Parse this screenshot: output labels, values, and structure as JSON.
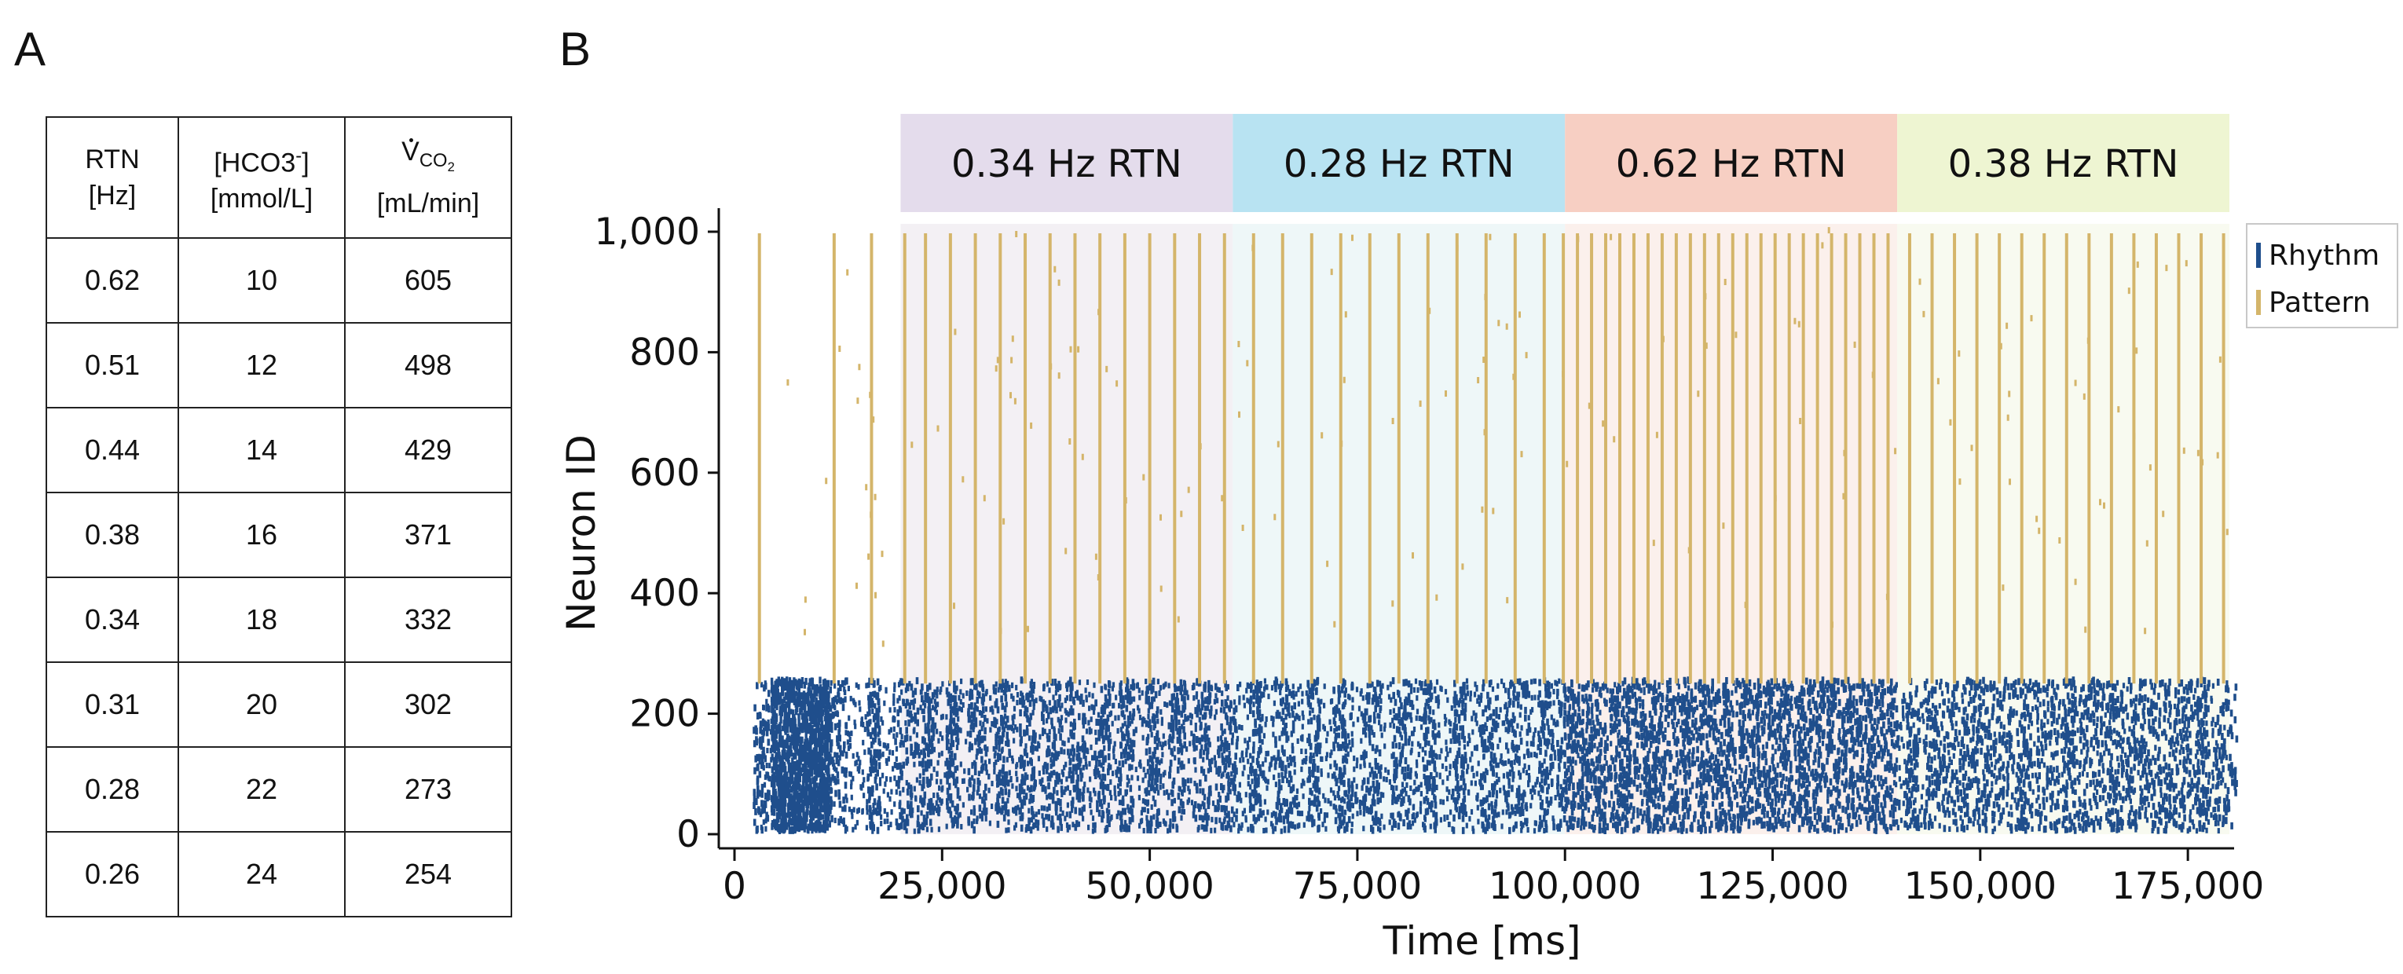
{
  "panel_labels": {
    "a": "A",
    "b": "B"
  },
  "table": {
    "headers": [
      {
        "line1": "RTN",
        "line2": "[Hz]"
      },
      {
        "line1_main": "[HCO3",
        "line1_sup": "-",
        "line1_end": "]",
        "line2": "[mmol/L]"
      },
      {
        "line1_main": "V",
        "line1_sub": "CO",
        "line1_subsub": "2",
        "line2": "[mL/min]"
      }
    ],
    "rows": [
      {
        "rtn": "0.62",
        "hco3": "10",
        "vco2": "605"
      },
      {
        "rtn": "0.51",
        "hco3": "12",
        "vco2": "498"
      },
      {
        "rtn": "0.44",
        "hco3": "14",
        "vco2": "429"
      },
      {
        "rtn": "0.38",
        "hco3": "16",
        "vco2": "371"
      },
      {
        "rtn": "0.34",
        "hco3": "18",
        "vco2": "332"
      },
      {
        "rtn": "0.31",
        "hco3": "20",
        "vco2": "302"
      },
      {
        "rtn": "0.28",
        "hco3": "22",
        "vco2": "273"
      },
      {
        "rtn": "0.26",
        "hco3": "24",
        "vco2": "254"
      }
    ]
  },
  "chart_data": {
    "type": "scatter",
    "subtype": "raster",
    "xlabel": "Time [ms]",
    "ylabel": "Neuron ID",
    "xlim": [
      0,
      180000
    ],
    "ylim": [
      0,
      1000
    ],
    "x_ticks": [
      0,
      25000,
      50000,
      75000,
      100000,
      125000,
      150000,
      175000
    ],
    "x_tick_labels": [
      "0",
      "25,000",
      "50,000",
      "75,000",
      "100,000",
      "125,000",
      "150,000",
      "175,000"
    ],
    "y_ticks": [
      0,
      200,
      400,
      600,
      800,
      1000
    ],
    "y_tick_labels": [
      "0",
      "200",
      "400",
      "600",
      "800",
      "1,000"
    ],
    "legend": {
      "placement": "right",
      "entries": [
        {
          "name": "Rhythm",
          "color": "#1f4e8c"
        },
        {
          "name": "Pattern",
          "color": "#d4b56a"
        }
      ]
    },
    "bands": [
      {
        "label": "0.34 Hz RTN",
        "x_start": 20000,
        "x_end": 60000,
        "color": "#e4dcec",
        "shade": "#f3f0f4"
      },
      {
        "label": "0.28 Hz RTN",
        "x_start": 60000,
        "x_end": 100000,
        "color": "#b8e3f2",
        "shade": "#eef7f8"
      },
      {
        "label": "0.62 Hz RTN",
        "x_start": 100000,
        "x_end": 140000,
        "color": "#f7cfc3",
        "shade": "#fbf0ec"
      },
      {
        "label": "0.38 Hz RTN",
        "x_start": 140000,
        "x_end": 180000,
        "color": "#eef5d2",
        "shade": "#f8faf0"
      }
    ],
    "series": [
      {
        "name": "Rhythm",
        "neuron_range": [
          0,
          250
        ],
        "description": "dense spiking population"
      },
      {
        "name": "Pattern",
        "neuron_range": [
          250,
          1000
        ],
        "description": "synchronous bursts spanning all neurons"
      }
    ],
    "pattern_burst_times": [
      3000,
      12000,
      16500,
      20500,
      23000,
      26000,
      29000,
      32000,
      35000,
      38000,
      41000,
      44000,
      47000,
      50000,
      53000,
      56000,
      59000,
      62500,
      66000,
      69500,
      73000,
      76500,
      80000,
      83500,
      87000,
      90500,
      94000,
      97500,
      99800,
      101500,
      103200,
      104900,
      106600,
      108300,
      110000,
      111700,
      113400,
      115100,
      116800,
      118500,
      120200,
      121900,
      123600,
      125300,
      127000,
      128700,
      130400,
      132100,
      133800,
      135500,
      137200,
      138900,
      141500,
      144200,
      146900,
      149600,
      152300,
      155000,
      157700,
      160400,
      163100,
      165800,
      168500,
      171200,
      173900,
      176600,
      179300
    ]
  }
}
